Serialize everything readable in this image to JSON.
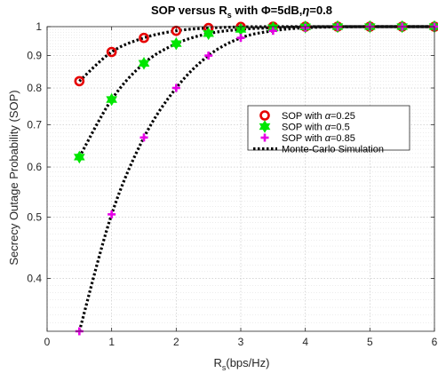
{
  "chart_data": {
    "type": "line",
    "title": {
      "main": "SOP versus R",
      "main_sub": "s",
      "rest": " with Φ=5dB,",
      "eta": "η",
      "eta_val": "=0.8"
    },
    "xlabel": {
      "main": "R",
      "sub": "s",
      "rest": "(bps/Hz)"
    },
    "ylabel": "Secrecy Outage Probability (SOP)",
    "xlim": [
      0,
      6
    ],
    "ylim": [
      0.33,
      1.0
    ],
    "yscale": "log",
    "grid": true,
    "minor_grid": true,
    "legend_position": "right",
    "xticks": [
      0,
      1,
      2,
      3,
      4,
      5,
      6
    ],
    "xtick_labels": [
      "0",
      "1",
      "2",
      "3",
      "4",
      "5",
      "6"
    ],
    "yticks": [
      0.4,
      0.5,
      0.6,
      0.7,
      0.8,
      0.9,
      1.0
    ],
    "ytick_labels": [
      "0.4",
      "0.5",
      "0.6",
      "0.7",
      "0.8",
      "0.9",
      "1"
    ],
    "x": [
      0.5,
      1.0,
      1.5,
      2.0,
      2.5,
      3.0,
      3.5,
      4.0,
      4.5,
      5.0,
      5.5,
      6.0
    ],
    "series": [
      {
        "name": "SOP with α=0.25",
        "label_prefix": "SOP with ",
        "label_alpha": "α",
        "label_value": "=0.25",
        "marker": "circle",
        "color": "#e60000",
        "values": [
          0.82,
          0.912,
          0.96,
          0.985,
          0.995,
          0.999,
          1.0,
          1.0,
          1.0,
          1.0,
          1.0,
          1.0
        ]
      },
      {
        "name": "SOP with α=0.5",
        "label_prefix": "SOP with ",
        "label_alpha": "α",
        "label_value": "=0.5",
        "marker": "hexagram",
        "color": "#00e600",
        "values": [
          0.622,
          0.767,
          0.875,
          0.94,
          0.975,
          0.99,
          0.996,
          0.999,
          1.0,
          1.0,
          1.0,
          1.0
        ]
      },
      {
        "name": "SOP with α=0.85",
        "label_prefix": "SOP with ",
        "label_alpha": "α",
        "label_value": "=0.85",
        "marker": "plus",
        "color": "#e600e6",
        "values": [
          0.33,
          0.505,
          0.668,
          0.8,
          0.9,
          0.96,
          0.985,
          0.996,
          0.999,
          1.0,
          1.0,
          1.0
        ]
      }
    ],
    "simulation": {
      "name": "Monte-Carlo Simulation",
      "style": "dotted",
      "color": "#000000"
    }
  }
}
